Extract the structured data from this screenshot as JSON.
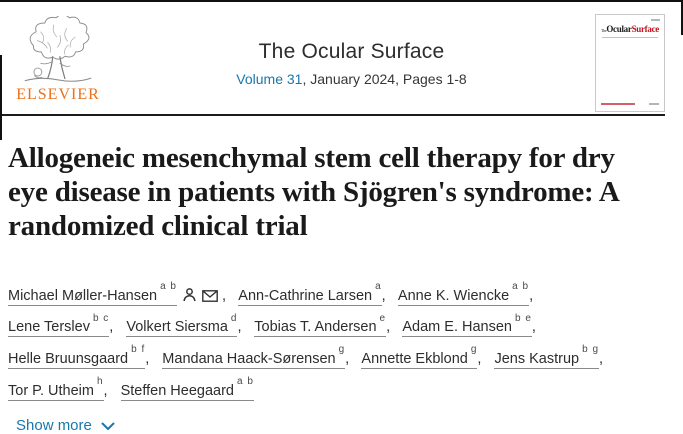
{
  "colors": {
    "link_blue": "#1878ab",
    "elsevier_orange": "#e9711c",
    "cover_red": "#c0121f",
    "title_text": "#1a1a1a",
    "body_text": "#2d2d2d",
    "divider": "#1c1c1c"
  },
  "header": {
    "publisher_name": "ELSEVIER",
    "journal_title": "The Ocular Surface",
    "volume_link_label": "Volume 31",
    "issue_info": ", January 2024, Pages 1-8",
    "cover": {
      "masthead_the": "The",
      "masthead_word1": "Ocular",
      "masthead_word2": "Surface"
    }
  },
  "article": {
    "title": "Allogeneic mesenchymal stem cell therapy for dry eye disease in patients with Sjögren's syndrome: A randomized clinical trial",
    "authors": [
      {
        "name": "Michael Møller-Hansen",
        "sup": "a b",
        "has_person_icon": true,
        "has_envelope_icon": true,
        "trailing": " ,"
      },
      {
        "name": "Ann-Cathrine Larsen",
        "sup": "a",
        "trailing": ","
      },
      {
        "name": "Anne K. Wiencke",
        "sup": "a b",
        "trailing": ","
      },
      {
        "name": "Lene Terslev",
        "sup": "b c",
        "trailing": ","
      },
      {
        "name": "Volkert Siersma",
        "sup": "d",
        "trailing": ","
      },
      {
        "name": "Tobias T. Andersen",
        "sup": "e",
        "trailing": ","
      },
      {
        "name": "Adam E. Hansen",
        "sup": "b e",
        "trailing": ","
      },
      {
        "name": "Helle Bruunsgaard",
        "sup": "b f",
        "trailing": ","
      },
      {
        "name": "Mandana Haack-Sørensen",
        "sup": "g",
        "trailing": ","
      },
      {
        "name": "Annette Ekblond",
        "sup": "g",
        "trailing": ","
      },
      {
        "name": "Jens Kastrup",
        "sup": "b g",
        "trailing": ","
      },
      {
        "name": "Tor P. Utheim",
        "sup": "h",
        "trailing": ","
      },
      {
        "name": "Steffen Heegaard",
        "sup": "a b",
        "trailing": ""
      }
    ],
    "show_more_label": "Show more"
  }
}
